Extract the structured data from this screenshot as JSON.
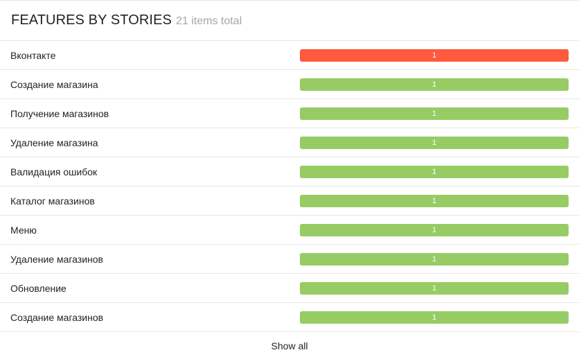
{
  "widget": {
    "title": "FEATURES BY STORIES",
    "subtitle": "21 items total",
    "show_all_label": "Show all"
  },
  "colors": {
    "failed": "#fd5a3e",
    "passed": "#97cc64"
  },
  "rows": [
    {
      "name": "Вконтакте",
      "segments": [
        {
          "status": "failed",
          "count": "1",
          "share": 1
        }
      ]
    },
    {
      "name": "Создание магазина",
      "segments": [
        {
          "status": "passed",
          "count": "1",
          "share": 1
        }
      ]
    },
    {
      "name": "Получение магазинов",
      "segments": [
        {
          "status": "passed",
          "count": "1",
          "share": 1
        }
      ]
    },
    {
      "name": "Удаление магазина",
      "segments": [
        {
          "status": "passed",
          "count": "1",
          "share": 1
        }
      ]
    },
    {
      "name": "Валидация ошибок",
      "segments": [
        {
          "status": "passed",
          "count": "1",
          "share": 1
        }
      ]
    },
    {
      "name": "Каталог магазинов",
      "segments": [
        {
          "status": "passed",
          "count": "1",
          "share": 1
        }
      ]
    },
    {
      "name": "Меню",
      "segments": [
        {
          "status": "passed",
          "count": "1",
          "share": 1
        }
      ]
    },
    {
      "name": "Удаление магазинов",
      "segments": [
        {
          "status": "passed",
          "count": "1",
          "share": 1
        }
      ]
    },
    {
      "name": "Обновление",
      "segments": [
        {
          "status": "passed",
          "count": "1",
          "share": 1
        }
      ]
    },
    {
      "name": "Создание магазинов",
      "segments": [
        {
          "status": "passed",
          "count": "1",
          "share": 1
        }
      ]
    }
  ]
}
